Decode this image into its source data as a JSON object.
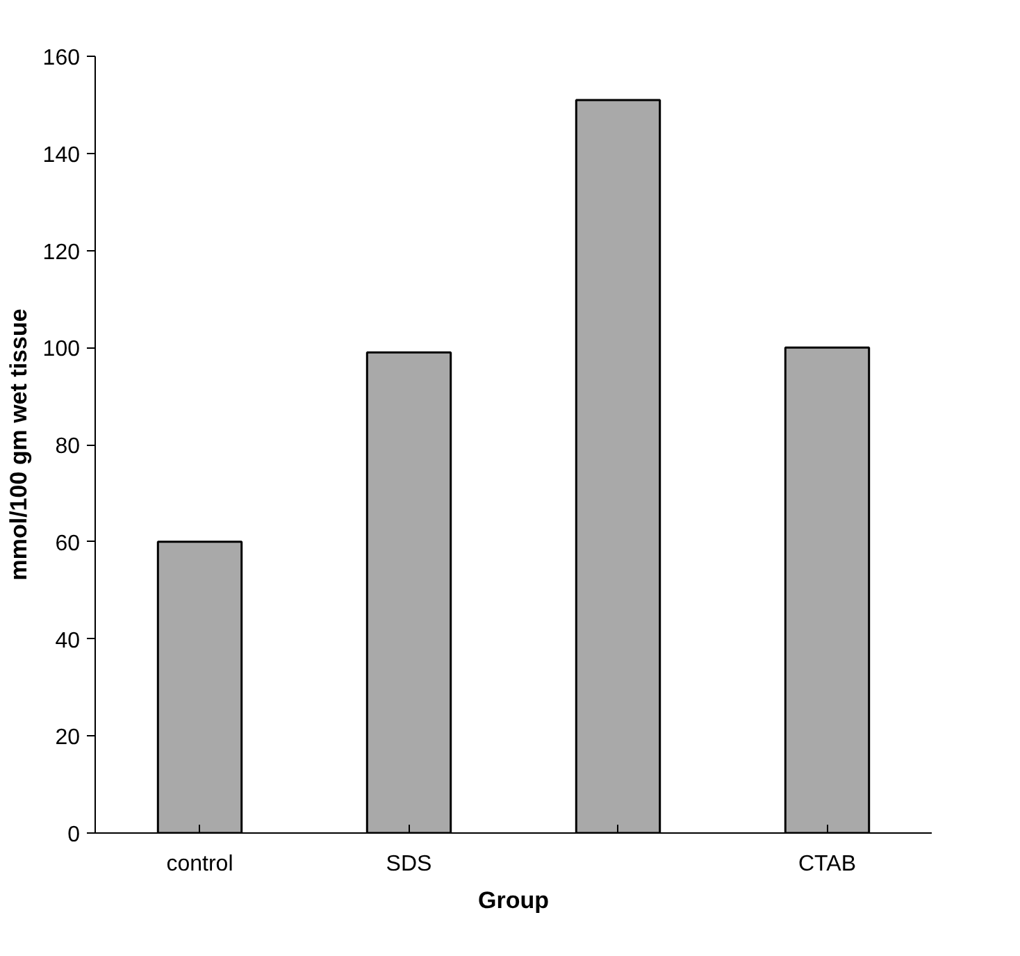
{
  "chart_data": {
    "type": "bar",
    "xlabel": "Group",
    "ylabel": "mmol/100 gm wet tissue",
    "categories": [
      "control",
      "SDS",
      null,
      "CTAB"
    ],
    "values": [
      60,
      99,
      151,
      100
    ],
    "color": "#a9a9a9",
    "ylim": [
      0,
      160
    ],
    "yticks": [
      0,
      20,
      40,
      60,
      80,
      100,
      120,
      140,
      160
    ],
    "grid": false
  }
}
